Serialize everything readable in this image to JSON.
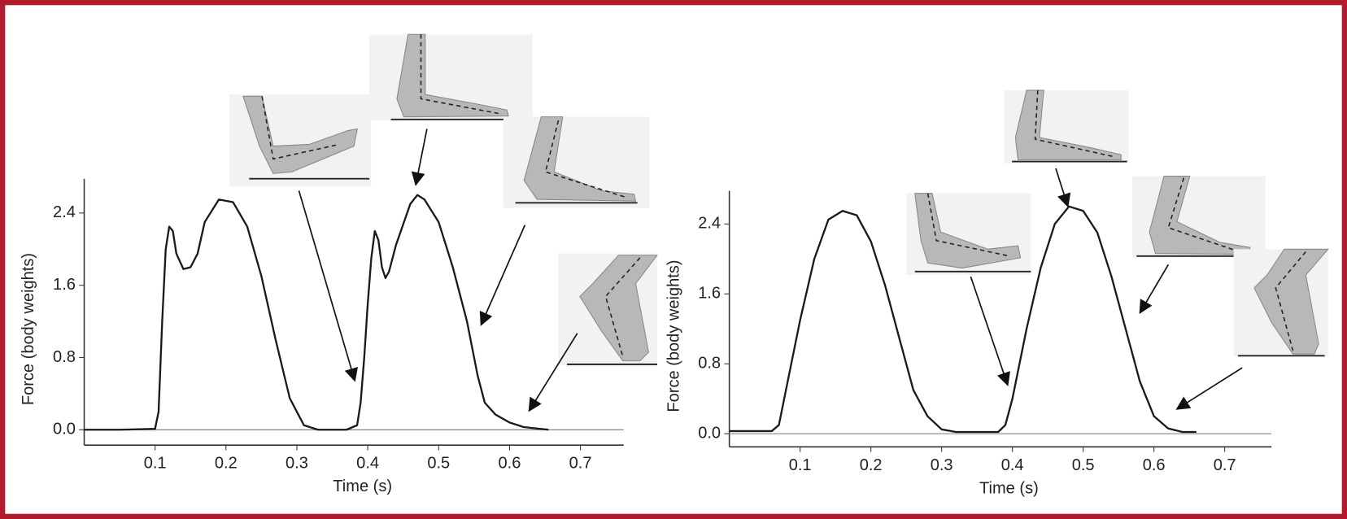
{
  "chart_data": [
    {
      "type": "line",
      "xlabel": "Time (s)",
      "ylabel": "Force (body weights)",
      "color": "#1a1a1a",
      "xlim": [
        0,
        0.761
      ],
      "ylim": [
        -0.17,
        2.78
      ],
      "xticks": [
        0.1,
        0.2,
        0.3,
        0.4,
        0.5,
        0.6,
        0.7
      ],
      "yticks": [
        {
          "value": 0,
          "label": "0.0"
        },
        0.8,
        1.6,
        2.4
      ],
      "x": [
        0,
        0.05,
        0.1,
        0.105,
        0.11,
        0.115,
        0.12,
        0.125,
        0.13,
        0.14,
        0.15,
        0.16,
        0.17,
        0.19,
        0.21,
        0.23,
        0.25,
        0.27,
        0.29,
        0.31,
        0.33,
        0.37,
        0.385,
        0.39,
        0.395,
        0.4,
        0.405,
        0.41,
        0.415,
        0.42,
        0.425,
        0.43,
        0.44,
        0.46,
        0.47,
        0.48,
        0.5,
        0.52,
        0.54,
        0.555,
        0.565,
        0.58,
        0.6,
        0.62,
        0.655
      ],
      "values": [
        0,
        0,
        0.01,
        0.2,
        1.2,
        2.0,
        2.25,
        2.2,
        1.95,
        1.78,
        1.8,
        1.95,
        2.3,
        2.55,
        2.52,
        2.25,
        1.7,
        1.0,
        0.35,
        0.05,
        0,
        0,
        0.05,
        0.3,
        0.8,
        1.4,
        1.9,
        2.2,
        2.1,
        1.8,
        1.68,
        1.75,
        2.05,
        2.5,
        2.6,
        2.55,
        2.3,
        1.8,
        1.2,
        0.6,
        0.3,
        0.17,
        0.08,
        0.03,
        0
      ]
    },
    {
      "type": "line",
      "xlabel": "Time (s)",
      "ylabel": "Force (body weights)",
      "color": "#1a1a1a",
      "xlim": [
        0,
        0.766
      ],
      "ylim": [
        -0.15,
        2.78
      ],
      "xticks": [
        0.1,
        0.2,
        0.3,
        0.4,
        0.5,
        0.6,
        0.7
      ],
      "yticks": [
        {
          "value": 0,
          "label": "0.0"
        },
        0.8,
        1.6,
        2.4
      ],
      "x": [
        0,
        0.06,
        0.07,
        0.08,
        0.1,
        0.12,
        0.14,
        0.16,
        0.18,
        0.2,
        0.22,
        0.24,
        0.26,
        0.28,
        0.3,
        0.32,
        0.38,
        0.39,
        0.4,
        0.42,
        0.44,
        0.46,
        0.48,
        0.5,
        0.52,
        0.54,
        0.56,
        0.58,
        0.6,
        0.62,
        0.64,
        0.66
      ],
      "values": [
        0.03,
        0.03,
        0.1,
        0.5,
        1.3,
        2.0,
        2.45,
        2.55,
        2.5,
        2.2,
        1.7,
        1.1,
        0.5,
        0.2,
        0.05,
        0.02,
        0.02,
        0.1,
        0.4,
        1.2,
        1.9,
        2.4,
        2.6,
        2.55,
        2.3,
        1.8,
        1.2,
        0.6,
        0.2,
        0.06,
        0.02,
        0.02
      ]
    }
  ]
}
